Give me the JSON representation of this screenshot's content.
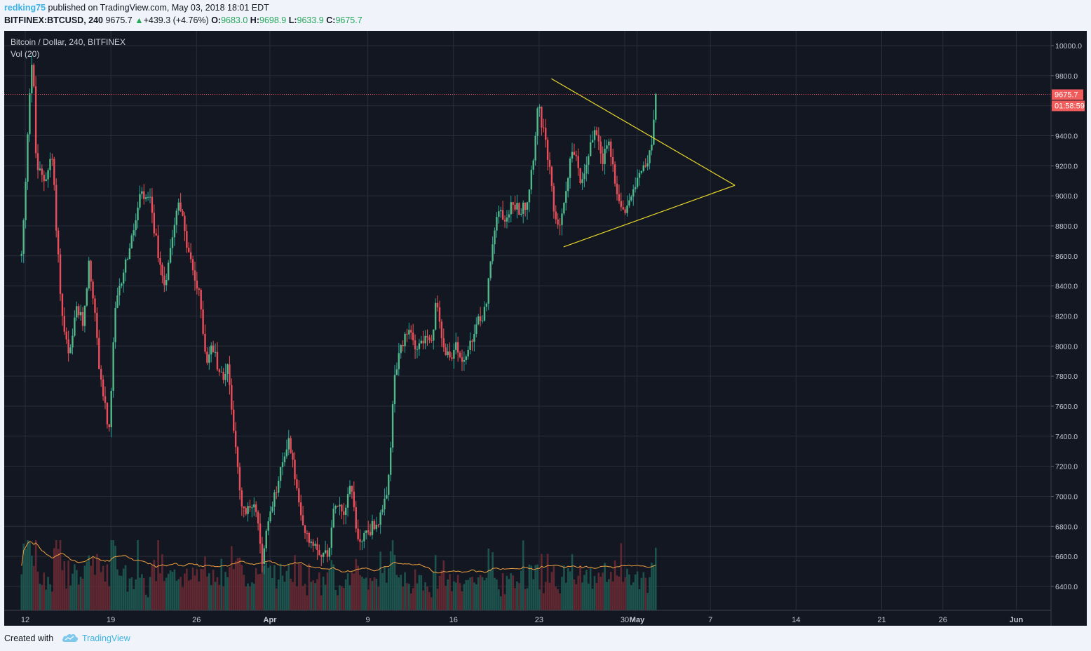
{
  "header": {
    "username": "redking75",
    "published_text": "published on TradingView.com, May 03, 2018 18:01 EDT",
    "symbol": "BITFINEX:BTCUSD, 240",
    "last": "9675.7",
    "arrow": "▲",
    "change": "+439.3 (+4.76%)",
    "o_label": "O:",
    "o_value": "9683.0",
    "h_label": "H:",
    "h_value": "9698.9",
    "l_label": "L:",
    "l_value": "9633.9",
    "c_label": "C:",
    "c_value": "9675.7"
  },
  "legend": {
    "title": "Bitcoin / Dollar, 240, BITFINEX",
    "volume": "Vol (20)"
  },
  "price_tag": {
    "value": "9675.7",
    "countdown": "01:58:59"
  },
  "footer": {
    "created_with": "Created with",
    "brand": "TradingView"
  },
  "colors": {
    "background": "#131722",
    "grid": "#2a2e39",
    "up": "#26a69a",
    "up_body": "#53b987",
    "down": "#ef5350",
    "down_body": "#eb4d5c",
    "triangle": "#e8d82a",
    "price_line": "#f05b5b",
    "volume_ma": "#f0a040"
  },
  "chart_data": {
    "type": "candlestick",
    "symbol": "BITFINEX:BTCUSD",
    "timeframe": "240",
    "ylim": [
      6250,
      10150
    ],
    "y_ticks": [
      6400,
      6600,
      6800,
      7000,
      7200,
      7400,
      7600,
      7800,
      8000,
      8200,
      8400,
      8600,
      8800,
      9000,
      9200,
      9400,
      9600,
      9800,
      10000
    ],
    "x_ticks": [
      "12",
      "19",
      "26",
      "Apr",
      "9",
      "16",
      "23",
      "30",
      "May",
      "7",
      "14",
      "21",
      "26",
      "Jun"
    ],
    "x_tick_days": [
      0,
      7,
      14,
      20,
      28,
      35,
      42,
      49,
      50,
      56,
      63,
      70,
      75,
      81
    ],
    "last_price": 9675.7,
    "path_anchors": [
      [
        -0.3,
        8600
      ],
      [
        0,
        9000
      ],
      [
        0.3,
        9650
      ],
      [
        0.6,
        9950
      ],
      [
        0.9,
        9200
      ],
      [
        1.5,
        9100
      ],
      [
        2.2,
        9250
      ],
      [
        3.0,
        8200
      ],
      [
        3.6,
        7900
      ],
      [
        4.2,
        8250
      ],
      [
        4.7,
        8150
      ],
      [
        5.2,
        8550
      ],
      [
        5.6,
        8300
      ],
      [
        6.0,
        7900
      ],
      [
        6.5,
        7600
      ],
      [
        6.9,
        7400
      ],
      [
        7.3,
        8200
      ],
      [
        8.0,
        8500
      ],
      [
        8.7,
        8700
      ],
      [
        9.4,
        9000
      ],
      [
        10.2,
        8950
      ],
      [
        10.9,
        8600
      ],
      [
        11.4,
        8400
      ],
      [
        12.0,
        8750
      ],
      [
        12.6,
        9000
      ],
      [
        13.1,
        8700
      ],
      [
        13.7,
        8500
      ],
      [
        14.3,
        8300
      ],
      [
        14.8,
        7900
      ],
      [
        15.3,
        8000
      ],
      [
        16.0,
        7800
      ],
      [
        16.6,
        7850
      ],
      [
        17.2,
        7300
      ],
      [
        17.7,
        6900
      ],
      [
        18.3,
        6900
      ],
      [
        18.8,
        7000
      ],
      [
        19.3,
        6550
      ],
      [
        19.8,
        6800
      ],
      [
        20.4,
        7000
      ],
      [
        21.0,
        7200
      ],
      [
        21.5,
        7400
      ],
      [
        22.1,
        7100
      ],
      [
        22.6,
        6800
      ],
      [
        23.2,
        6700
      ],
      [
        23.7,
        6700
      ],
      [
        24.3,
        6600
      ],
      [
        24.8,
        6650
      ],
      [
        25.4,
        7000
      ],
      [
        26.0,
        6900
      ],
      [
        26.6,
        7100
      ],
      [
        27.2,
        6700
      ],
      [
        27.8,
        6750
      ],
      [
        28.4,
        6800
      ],
      [
        29.0,
        6850
      ],
      [
        29.6,
        7000
      ],
      [
        30.2,
        7800
      ],
      [
        30.8,
        8000
      ],
      [
        31.4,
        8100
      ],
      [
        32.0,
        8000
      ],
      [
        32.6,
        8050
      ],
      [
        33.2,
        8000
      ],
      [
        33.6,
        8300
      ],
      [
        34.0,
        8100
      ],
      [
        34.6,
        7900
      ],
      [
        35.1,
        8000
      ],
      [
        35.8,
        7900
      ],
      [
        36.4,
        8000
      ],
      [
        37.0,
        8150
      ],
      [
        37.6,
        8250
      ],
      [
        38.1,
        8600
      ],
      [
        38.6,
        8900
      ],
      [
        39.2,
        8850
      ],
      [
        39.8,
        8950
      ],
      [
        40.4,
        8900
      ],
      [
        41.0,
        8950
      ],
      [
        41.5,
        9250
      ],
      [
        41.9,
        9600
      ],
      [
        42.3,
        9450
      ],
      [
        42.8,
        9200
      ],
      [
        43.2,
        8900
      ],
      [
        43.6,
        8800
      ],
      [
        44.0,
        8900
      ],
      [
        44.5,
        9250
      ],
      [
        44.9,
        9300
      ],
      [
        45.4,
        9050
      ],
      [
        45.8,
        9200
      ],
      [
        46.2,
        9350
      ],
      [
        46.7,
        9450
      ],
      [
        47.2,
        9250
      ],
      [
        47.7,
        9350
      ],
      [
        48.1,
        9150
      ],
      [
        48.6,
        8950
      ],
      [
        49.1,
        8900
      ],
      [
        49.6,
        9050
      ],
      [
        50.1,
        9150
      ],
      [
        50.6,
        9220
      ],
      [
        51.0,
        9250
      ],
      [
        51.3,
        9400
      ],
      [
        51.55,
        9675
      ]
    ],
    "triangle": {
      "upper_line": [
        [
          "2018-04-24",
          9780
        ],
        [
          "2018-05-09",
          9070
        ]
      ],
      "lower_line": [
        [
          "2018-04-25",
          8660
        ],
        [
          "2018-05-09",
          9070
        ]
      ]
    },
    "volume_ma_period": 20
  }
}
